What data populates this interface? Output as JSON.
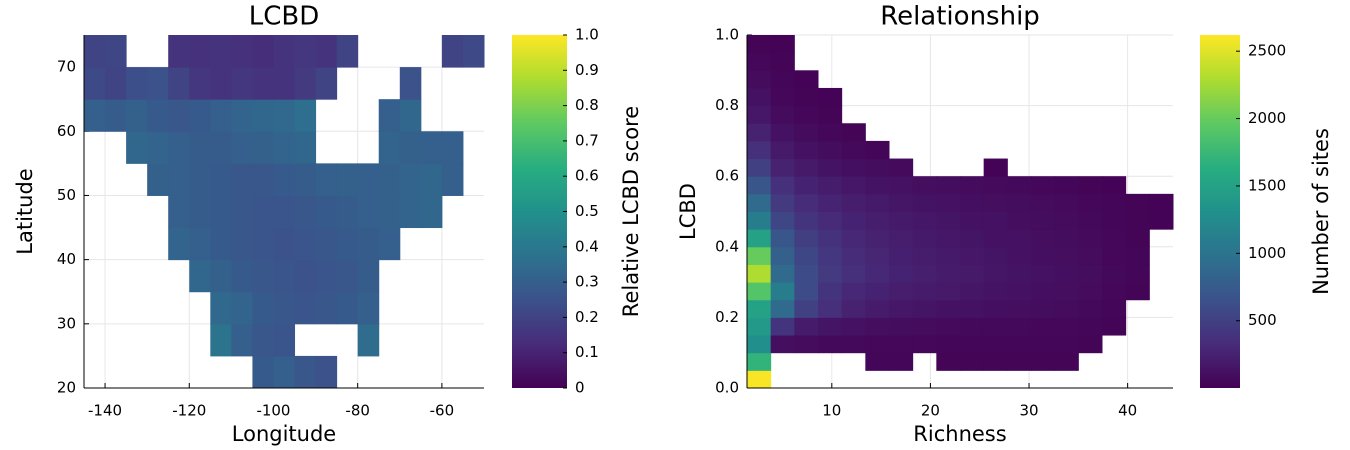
{
  "chart_data": [
    {
      "type": "heatmap",
      "title": "LCBD",
      "x_label": "Longitude",
      "y_label": "Latitude",
      "colorbar_label": "Relative LCBD score",
      "x": [
        -145,
        -140,
        -135,
        -130,
        -125,
        -120,
        -115,
        -110,
        -105,
        -100,
        -95,
        -90,
        -85,
        -80,
        -75,
        -70,
        -65,
        -60,
        -55
      ],
      "y": [
        20,
        25,
        30,
        35,
        40,
        45,
        50,
        55,
        60,
        65,
        70
      ],
      "cell_size": 5,
      "values": [
        [
          null,
          null,
          null,
          null,
          null,
          null,
          null,
          null,
          0.28,
          0.3,
          0.27,
          0.25,
          null,
          null,
          null,
          null,
          null,
          null,
          null
        ],
        [
          null,
          null,
          null,
          null,
          null,
          null,
          0.38,
          0.3,
          0.27,
          0.26,
          null,
          null,
          null,
          0.35,
          null,
          null,
          null,
          null,
          null
        ],
        [
          null,
          null,
          null,
          null,
          null,
          null,
          0.34,
          0.32,
          0.28,
          0.27,
          0.26,
          0.27,
          0.28,
          0.3,
          null,
          null,
          null,
          null,
          null
        ],
        [
          null,
          null,
          null,
          null,
          null,
          0.33,
          0.31,
          0.28,
          0.27,
          0.26,
          0.25,
          0.26,
          0.27,
          0.29,
          null,
          null,
          null,
          null,
          null
        ],
        [
          null,
          null,
          null,
          null,
          0.32,
          0.3,
          0.28,
          0.27,
          0.26,
          0.25,
          0.26,
          0.27,
          0.28,
          0.29,
          0.3,
          null,
          null,
          null,
          null
        ],
        [
          null,
          null,
          null,
          null,
          0.3,
          0.29,
          0.28,
          0.27,
          0.26,
          0.26,
          0.27,
          0.28,
          0.29,
          0.3,
          0.31,
          0.32,
          0.33,
          null,
          null
        ],
        [
          null,
          null,
          null,
          0.31,
          0.3,
          0.29,
          0.28,
          0.27,
          0.27,
          0.28,
          0.29,
          0.3,
          0.31,
          0.3,
          0.31,
          0.32,
          0.33,
          0.3,
          null
        ],
        [
          null,
          null,
          0.33,
          0.32,
          0.3,
          0.29,
          0.29,
          0.3,
          0.31,
          0.32,
          0.33,
          null,
          null,
          null,
          0.32,
          0.31,
          0.3,
          0.3,
          null
        ],
        [
          0.3,
          0.29,
          0.31,
          0.28,
          0.27,
          0.28,
          0.3,
          0.32,
          0.33,
          0.34,
          0.36,
          null,
          null,
          null,
          0.3,
          0.33,
          null,
          null,
          null
        ],
        [
          0.22,
          0.2,
          0.24,
          0.25,
          0.2,
          0.16,
          0.15,
          0.16,
          0.15,
          0.15,
          0.17,
          0.2,
          null,
          null,
          null,
          0.25,
          null,
          null,
          null
        ],
        [
          0.2,
          0.21,
          null,
          null,
          0.15,
          0.14,
          0.15,
          0.14,
          0.13,
          0.15,
          0.16,
          0.15,
          0.2,
          null,
          null,
          null,
          null,
          0.2,
          0.22
        ]
      ],
      "xlim": [
        -145,
        -50
      ],
      "ylim": [
        20,
        75
      ],
      "xticks": [
        -140,
        -120,
        -100,
        -80,
        -60
      ],
      "yticks": [
        20,
        30,
        40,
        50,
        60,
        70
      ],
      "clim": [
        0,
        1
      ],
      "cticks": [
        0,
        0.1,
        0.2,
        0.3,
        0.4,
        0.5,
        0.6,
        0.7,
        0.8,
        0.9,
        {
          "value": 1,
          "label": "1.0"
        }
      ],
      "grid": true
    },
    {
      "type": "histogram2d",
      "title": "Relationship",
      "x_label": "Richness",
      "y_label": "LCBD",
      "colorbar_label": "Number of sites",
      "xbins": [
        1.4,
        3.8,
        6.2,
        8.6,
        11,
        13.4,
        15.8,
        18.2,
        20.6,
        23,
        25.4,
        27.8,
        30.2,
        32.6,
        35,
        37.4,
        39.8,
        42.2,
        44.6
      ],
      "ybins": [
        0,
        0.05,
        0.1,
        0.15,
        0.2,
        0.25,
        0.3,
        0.35,
        0.4,
        0.45,
        0.5,
        0.55,
        0.6,
        0.65,
        0.7,
        0.75,
        0.8,
        0.85,
        0.9,
        0.95,
        1
      ],
      "values": [
        [
          2600,
          null,
          null,
          null,
          null,
          null,
          null,
          null,
          null,
          null,
          null,
          null,
          null,
          null,
          null,
          null,
          null,
          null
        ],
        [
          1700,
          null,
          null,
          null,
          null,
          40,
          40,
          null,
          30,
          30,
          30,
          30,
          30,
          30,
          null,
          null,
          null,
          null
        ],
        [
          1300,
          100,
          80,
          60,
          60,
          50,
          50,
          50,
          40,
          40,
          40,
          40,
          40,
          40,
          30,
          null,
          null,
          null
        ],
        [
          1400,
          400,
          200,
          150,
          120,
          100,
          90,
          80,
          70,
          60,
          60,
          60,
          50,
          50,
          40,
          30,
          null,
          null
        ],
        [
          1500,
          900,
          500,
          350,
          250,
          200,
          170,
          150,
          130,
          120,
          110,
          100,
          90,
          80,
          60,
          40,
          null,
          null
        ],
        [
          1900,
          1100,
          600,
          400,
          300,
          260,
          220,
          200,
          180,
          160,
          140,
          130,
          110,
          100,
          80,
          50,
          30,
          null
        ],
        [
          2300,
          900,
          600,
          450,
          350,
          300,
          260,
          230,
          200,
          180,
          160,
          140,
          120,
          110,
          90,
          60,
          40,
          null
        ],
        [
          2000,
          800,
          550,
          420,
          330,
          280,
          240,
          210,
          190,
          170,
          150,
          130,
          110,
          100,
          80,
          50,
          40,
          null
        ],
        [
          1500,
          700,
          480,
          380,
          300,
          250,
          220,
          190,
          170,
          150,
          130,
          120,
          100,
          90,
          70,
          50,
          30,
          null
        ],
        [
          1100,
          550,
          400,
          320,
          260,
          220,
          190,
          170,
          150,
          130,
          120,
          100,
          90,
          80,
          60,
          40,
          30,
          20
        ],
        [
          900,
          450,
          330,
          270,
          220,
          190,
          160,
          140,
          130,
          110,
          100,
          90,
          80,
          70,
          50,
          40,
          30,
          20
        ],
        [
          700,
          350,
          260,
          210,
          170,
          140,
          120,
          100,
          90,
          80,
          70,
          60,
          50,
          40,
          30,
          20,
          null,
          null
        ],
        [
          500,
          250,
          180,
          140,
          110,
          90,
          70,
          null,
          null,
          null,
          20,
          null,
          null,
          null,
          null,
          null,
          null,
          null
        ],
        [
          350,
          180,
          120,
          90,
          60,
          40,
          null,
          null,
          null,
          null,
          null,
          null,
          null,
          null,
          null,
          null,
          null,
          null
        ],
        [
          250,
          120,
          80,
          50,
          30,
          null,
          null,
          null,
          null,
          null,
          null,
          null,
          null,
          null,
          null,
          null,
          null,
          null
        ],
        [
          170,
          80,
          50,
          30,
          null,
          null,
          null,
          null,
          null,
          null,
          null,
          null,
          null,
          null,
          null,
          null,
          null,
          null
        ],
        [
          120,
          50,
          30,
          20,
          null,
          null,
          null,
          null,
          null,
          null,
          null,
          null,
          null,
          null,
          null,
          null,
          null,
          null
        ],
        [
          80,
          40,
          20,
          null,
          null,
          null,
          null,
          null,
          null,
          null,
          null,
          null,
          null,
          null,
          null,
          null,
          null,
          null
        ],
        [
          50,
          30,
          null,
          null,
          null,
          null,
          null,
          null,
          null,
          null,
          null,
          null,
          null,
          null,
          null,
          null,
          null,
          null
        ],
        [
          30,
          20,
          null,
          null,
          null,
          null,
          null,
          null,
          null,
          null,
          null,
          null,
          null,
          null,
          null,
          null,
          null,
          null
        ]
      ],
      "xlim": [
        1.4,
        44.6
      ],
      "ylim": [
        0,
        1
      ],
      "xticks": [
        10,
        20,
        30,
        40
      ],
      "yticks": [
        {
          "value": 0,
          "label": "0.0"
        },
        0.2,
        0.4,
        0.6,
        0.8,
        {
          "value": 1,
          "label": "1.0"
        }
      ],
      "clim": [
        1,
        2620
      ],
      "cticks": [
        500,
        1000,
        1500,
        2000,
        2500
      ],
      "grid": true
    }
  ]
}
